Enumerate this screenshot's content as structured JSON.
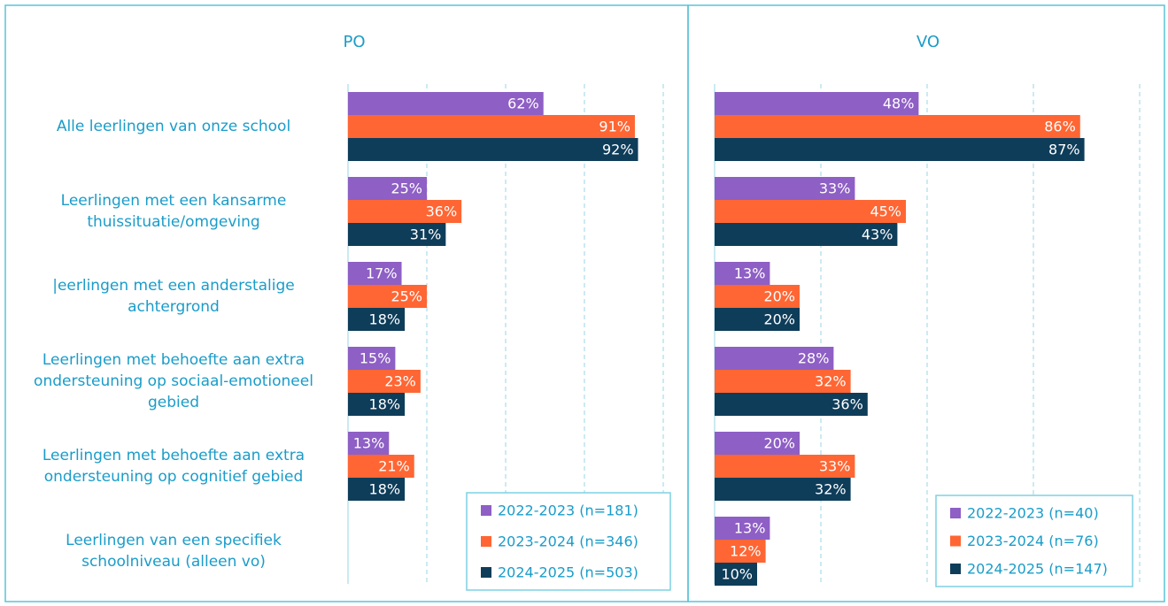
{
  "chart_data": [
    {
      "type": "bar",
      "orientation": "horizontal",
      "title": "PO",
      "categories": [
        "Alle leerlingen van onze school",
        "Leerlingen met een kansarme thuissituatie/omgeving",
        "|eerlingen met een anderstalige achtergrond",
        "Leerlingen met behoefte aan extra ondersteuning op sociaal-emotioneel gebied",
        "Leerlingen met behoefte aan extra ondersteuning op cognitief gebied",
        "Leerlingen van een specifiek schoolniveau (alleen vo)"
      ],
      "series": [
        {
          "name": "2022-2023 (n=181)",
          "color": "#8e5fc5",
          "values": [
            62,
            25,
            17,
            15,
            13,
            null
          ],
          "value_labels": [
            "62%",
            "25%",
            "17%",
            "15%",
            "13%",
            null
          ]
        },
        {
          "name": "2023-2024 (n=346)",
          "color": "#ff6633",
          "values": [
            91,
            36,
            25,
            23,
            21,
            null
          ],
          "value_labels": [
            "91%",
            "36%",
            "25%",
            "23%",
            "21%",
            null
          ]
        },
        {
          "name": "2024-2025 (n=503)",
          "color": "#0e3d5a",
          "values": [
            92,
            31,
            18,
            18,
            18,
            null
          ],
          "value_labels": [
            "92%",
            "31%",
            "18%",
            "18%",
            "18%",
            null
          ]
        }
      ],
      "xlim": [
        0,
        100
      ],
      "xticks": [
        0,
        25,
        50,
        75,
        100
      ],
      "grid": true,
      "legend": "lower right"
    },
    {
      "type": "bar",
      "orientation": "horizontal",
      "title": "VO",
      "series": [
        {
          "name": "2022-2023 (n=40)",
          "color": "#8e5fc5",
          "values": [
            48,
            33,
            13,
            28,
            20,
            13
          ],
          "value_labels": [
            "48%",
            "33%",
            "13%",
            "28%",
            "20%",
            "13%"
          ]
        },
        {
          "name": "2023-2024 (n=76)",
          "color": "#ff6633",
          "values": [
            86,
            45,
            20,
            32,
            33,
            12
          ],
          "value_labels": [
            "86%",
            "45%",
            "20%",
            "32%",
            "33%",
            "12%"
          ]
        },
        {
          "name": "2024-2025 (n=147)",
          "color": "#0e3d5a",
          "values": [
            87,
            43,
            20,
            36,
            32,
            10
          ],
          "value_labels": [
            "87%",
            "43%",
            "20%",
            "36%",
            "32%",
            "10%"
          ]
        }
      ],
      "xlim": [
        0,
        100
      ],
      "xticks": [
        0,
        25,
        50,
        75,
        100
      ],
      "grid": true,
      "legend": "lower right"
    }
  ]
}
